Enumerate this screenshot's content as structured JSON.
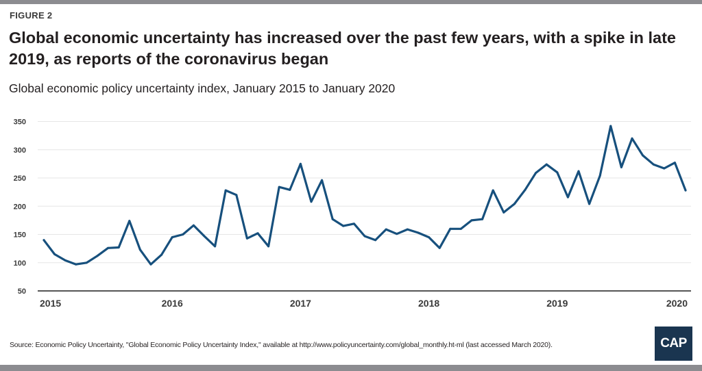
{
  "figure_label": "FIGURE 2",
  "title": "Global economic uncertainty has increased over the past few years, with a spike in late 2019, as reports of the coronavirus began",
  "subtitle": "Global economic policy uncertainty index, January 2015 to January 2020",
  "source": "Source: Economic Policy Uncertainty, \"Global Economic Policy Uncertainty Index,\" available at http://www.policyuncertainty.com/global_monthly.ht-ml (last accessed March 2020).",
  "logo_text": "CAP",
  "colors": {
    "line": "#17507d",
    "grid": "#e6e6e6",
    "axis": "#555555",
    "logo_bg": "#1a3550"
  },
  "chart_data": {
    "type": "line",
    "title": "Global economic uncertainty has increased over the past few years, with a spike in late 2019, as reports of the coronavirus began",
    "subtitle": "Global economic policy uncertainty index, January 2015 to January 2020",
    "xlabel": "",
    "ylabel": "",
    "ylim": [
      50,
      350
    ],
    "yticks": [
      50,
      100,
      150,
      200,
      250,
      300,
      350
    ],
    "xticks": [
      "2015",
      "2016",
      "2017",
      "2018",
      "2019",
      "2020"
    ],
    "grid": true,
    "legend": "none",
    "x": [
      "2015-01",
      "2015-02",
      "2015-03",
      "2015-04",
      "2015-05",
      "2015-06",
      "2015-07",
      "2015-08",
      "2015-09",
      "2015-10",
      "2015-11",
      "2015-12",
      "2016-01",
      "2016-02",
      "2016-03",
      "2016-04",
      "2016-05",
      "2016-06",
      "2016-07",
      "2016-08",
      "2016-09",
      "2016-10",
      "2016-11",
      "2016-12",
      "2017-01",
      "2017-02",
      "2017-03",
      "2017-04",
      "2017-05",
      "2017-06",
      "2017-07",
      "2017-08",
      "2017-09",
      "2017-10",
      "2017-11",
      "2017-12",
      "2018-01",
      "2018-02",
      "2018-03",
      "2018-04",
      "2018-05",
      "2018-06",
      "2018-07",
      "2018-08",
      "2018-09",
      "2018-10",
      "2018-11",
      "2018-12",
      "2019-01",
      "2019-02",
      "2019-03",
      "2019-04",
      "2019-05",
      "2019-06",
      "2019-07",
      "2019-08",
      "2019-09",
      "2019-10",
      "2019-11",
      "2019-12",
      "2020-01"
    ],
    "series": [
      {
        "name": "Global economic policy uncertainty index",
        "values": [
          140,
          115,
          104,
          97,
          100,
          112,
          126,
          127,
          174,
          123,
          97,
          114,
          145,
          150,
          166,
          147,
          129,
          228,
          220,
          143,
          152,
          129,
          234,
          229,
          275,
          208,
          246,
          177,
          165,
          169,
          147,
          140,
          159,
          151,
          159,
          153,
          145,
          126,
          160,
          160,
          175,
          177,
          228,
          189,
          204,
          229,
          259,
          274,
          260,
          216,
          262,
          204,
          254,
          342,
          269,
          320,
          290,
          274,
          267,
          277,
          228
        ]
      }
    ]
  }
}
